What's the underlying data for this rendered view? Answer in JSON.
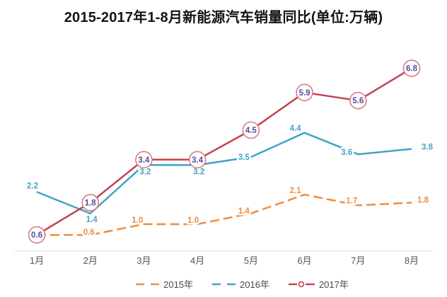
{
  "chart_data": {
    "type": "line",
    "title": "2015-2017年1-8月新能源汽车销量同比(单位:万辆)",
    "categories": [
      "1月",
      "2月",
      "3月",
      "4月",
      "5月",
      "6月",
      "7月",
      "8月"
    ],
    "series": [
      {
        "name": "2015年",
        "values": [
          0.6,
          0.6,
          1.0,
          1.0,
          1.4,
          2.1,
          1.7,
          1.8
        ],
        "color": "#EE8C3E",
        "line_style": "dashed",
        "marker": "none"
      },
      {
        "name": "2016年",
        "values": [
          2.2,
          1.4,
          3.2,
          3.2,
          3.5,
          4.4,
          3.6,
          3.8
        ],
        "color": "#41A3C6",
        "line_style": "solid",
        "marker": "none"
      },
      {
        "name": "2017年",
        "values": [
          0.6,
          1.8,
          3.4,
          3.4,
          4.5,
          5.9,
          5.6,
          6.8
        ],
        "color": "#C4424D",
        "line_style": "solid",
        "marker": "circled-label",
        "marker_fill": "#ffffff",
        "marker_border": "#DB7B87",
        "label_color": "#584A9E"
      }
    ],
    "ylim": [
      0,
      7.5
    ],
    "grid": false,
    "y_axis_shown": false,
    "legend_position": "bottom",
    "axis_line_color": "#E2E2E2",
    "x_label_color": "#555555"
  }
}
